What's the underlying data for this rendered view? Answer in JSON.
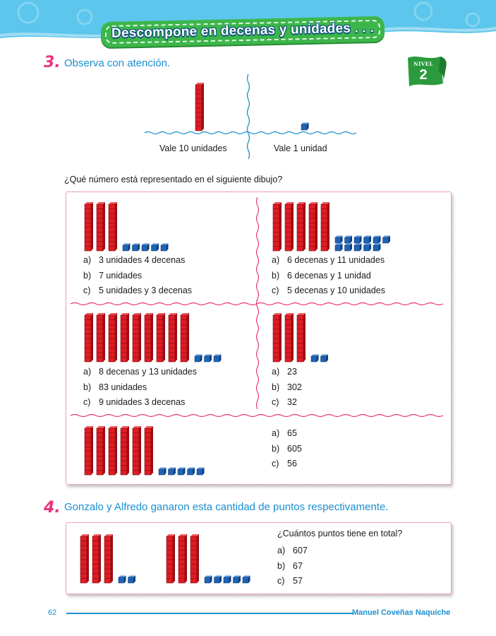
{
  "header": {
    "title": "Descompone en decenas y unidades . . ."
  },
  "level_badge": {
    "label": "NIVEL",
    "number": "2"
  },
  "section3": {
    "number": "3.",
    "title": "Observa con atención.",
    "demo": {
      "tens_caption": "Vale 10 unidades",
      "unit_caption": "Vale 1 unidad"
    },
    "question": "¿Qué número está representado en el siguiente dibujo?",
    "exercises": [
      {
        "tens": 3,
        "units": 5,
        "options": [
          {
            "letter": "a)",
            "text": "3 unidades 4 decenas"
          },
          {
            "letter": "b)",
            "text": "7 unidades"
          },
          {
            "letter": "c)",
            "text": "5 unidades y 3 decenas"
          }
        ]
      },
      {
        "tens": 5,
        "units": 11,
        "options": [
          {
            "letter": "a)",
            "text": "6 decenas y 11 unidades"
          },
          {
            "letter": "b)",
            "text": "6 decenas y 1 unidad"
          },
          {
            "letter": "c)",
            "text": "5 decenas y 10 unidades"
          }
        ]
      },
      {
        "tens": 9,
        "units": 3,
        "options": [
          {
            "letter": "a)",
            "text": "8 decenas y 13 unidades"
          },
          {
            "letter": "b)",
            "text": "83 unidades"
          },
          {
            "letter": "c)",
            "text": "9 unidades 3 decenas"
          }
        ]
      },
      {
        "tens": 3,
        "units": 2,
        "options": [
          {
            "letter": "a)",
            "text": "23"
          },
          {
            "letter": "b)",
            "text": "302"
          },
          {
            "letter": "c)",
            "text": "32"
          }
        ]
      },
      {
        "tens": 6,
        "units": 5,
        "options": [
          {
            "letter": "a)",
            "text": "65"
          },
          {
            "letter": "b)",
            "text": "605"
          },
          {
            "letter": "c)",
            "text": "56"
          }
        ]
      }
    ]
  },
  "section4": {
    "number": "4.",
    "title": "Gonzalo y Alfredo ganaron esta cantidad de puntos respectivamente.",
    "groups": [
      {
        "tens": 3,
        "units": 2
      },
      {
        "tens": 3,
        "units": 5
      }
    ],
    "question": "¿Cuántos puntos tiene en total?",
    "options": [
      {
        "letter": "a)",
        "text": "607"
      },
      {
        "letter": "b)",
        "text": "67"
      },
      {
        "letter": "c)",
        "text": "57"
      }
    ]
  },
  "footer": {
    "page_number": "62",
    "author": "Manuel Coveñas Naquiche"
  },
  "colors": {
    "ten_rod": "#e01b24",
    "unit_cube": "#1f63b5",
    "accent_blue": "#1a8fd0",
    "accent_pink": "#e8337e",
    "banner_green": "#3cb64a"
  }
}
